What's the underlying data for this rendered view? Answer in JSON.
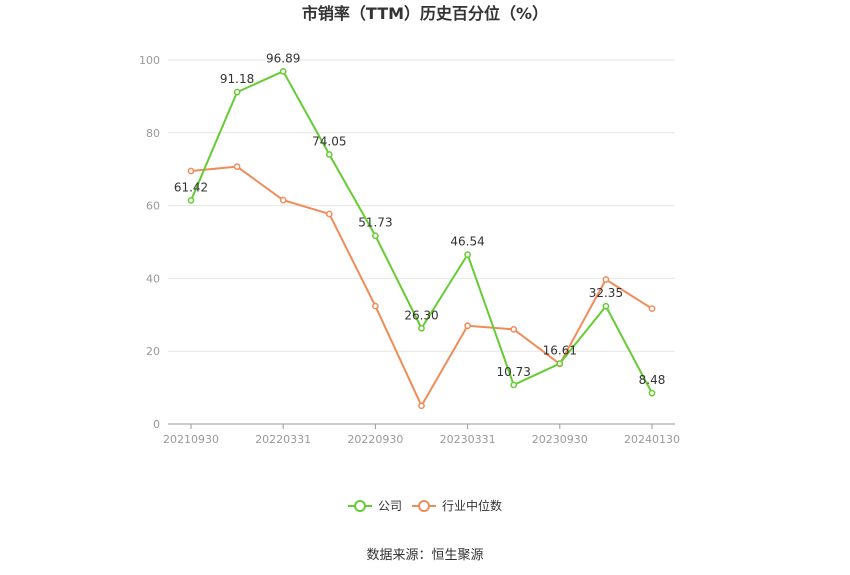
{
  "chart_data": {
    "type": "line",
    "title": "市销率（TTM）历史百分位（%）",
    "x": [
      "20210930",
      "20211231",
      "20220331",
      "20220630",
      "20220930",
      "20221231",
      "20230331",
      "20230630",
      "20230930",
      "20231231",
      "20240130"
    ],
    "x_tick_labels": [
      "20210930",
      "20220331",
      "20220930",
      "20230331",
      "20230930",
      "20240130"
    ],
    "ylim": [
      0,
      100
    ],
    "y_ticks": [
      "0",
      "20",
      "40",
      "60",
      "80",
      "100"
    ],
    "grid": true,
    "legend_position": "bottom",
    "series": [
      {
        "name": "公司",
        "color": "#66cc33",
        "values": [
          61.42,
          91.18,
          96.89,
          74.05,
          51.73,
          26.3,
          46.54,
          10.73,
          16.61,
          32.35,
          8.48
        ],
        "labels": [
          "61.42",
          "91.18",
          "96.89",
          "74.05",
          "51.73",
          "26.30",
          "46.54",
          "10.73",
          "16.61",
          "32.35",
          "8.48"
        ]
      },
      {
        "name": "行业中位数",
        "color": "#f08c5a",
        "values": [
          69.5,
          70.7,
          61.5,
          57.7,
          32.4,
          5.0,
          27.0,
          26.0,
          16.5,
          39.7,
          31.7
        ]
      }
    ]
  },
  "source": "数据来源：恒生聚源"
}
